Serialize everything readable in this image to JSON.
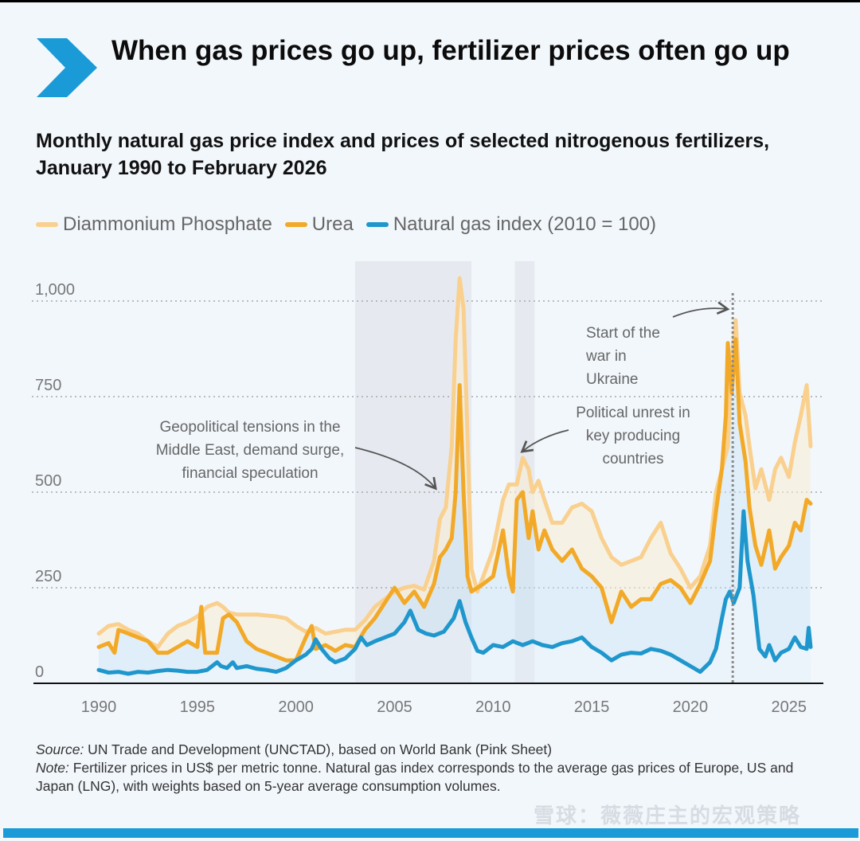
{
  "header": {
    "title": "When gas prices go up, fertilizer prices often go up",
    "subtitle": "Monthly natural gas price index and prices of selected nitrogenous fertilizers, January 1990 to February 2026"
  },
  "colors": {
    "accent": "#1a9bd7",
    "dap": "#f9d08e",
    "urea": "#f2a928",
    "gas": "#1f97cd",
    "shade": "#e6eaf0"
  },
  "legend": [
    {
      "label": "Diammonium Phosphate",
      "color": "#f9d08e"
    },
    {
      "label": "Urea",
      "color": "#f2a928"
    },
    {
      "label": "Natural gas index (2010 = 100)",
      "color": "#1f97cd"
    }
  ],
  "chart_data": {
    "type": "line",
    "title": "Monthly natural gas price index and prices of selected nitrogenous fertilizers, January 1990 to February 2026",
    "xlabel": "",
    "ylabel": "",
    "xlim": [
      1990,
      2026.1
    ],
    "ylim": [
      0,
      1000
    ],
    "grid": true,
    "legend_position": "top-left",
    "y_ticks": [
      {
        "value": 0,
        "label": "0"
      },
      {
        "value": 250,
        "label": "250"
      },
      {
        "value": 500,
        "label": "500"
      },
      {
        "value": 750,
        "label": "750"
      },
      {
        "value": 1000,
        "label": "1,000"
      }
    ],
    "x_ticks": [
      1990,
      1995,
      2000,
      2005,
      2010,
      2015,
      2020,
      2025
    ],
    "series": [
      {
        "name": "Diammonium Phosphate",
        "x": [
          1990,
          1990.5,
          1991,
          1991.5,
          1992,
          1992.5,
          1993,
          1993.5,
          1994,
          1994.5,
          1995,
          1995.5,
          1996,
          1996.3,
          1996.6,
          1997,
          1998,
          1999,
          1999.5,
          2000,
          2000.5,
          2001,
          2001.5,
          2002,
          2002.5,
          2003,
          2003.5,
          2004,
          2004.5,
          2005,
          2005.5,
          2006,
          2006.5,
          2007,
          2007.3,
          2007.6,
          2007.9,
          2008.1,
          2008.3,
          2008.5,
          2008.7,
          2008.9,
          2009.2,
          2009.5,
          2010,
          2010.5,
          2010.8,
          2011.2,
          2011.5,
          2011.8,
          2012,
          2012.3,
          2012.6,
          2013,
          2013.5,
          2014,
          2014.5,
          2015,
          2015.5,
          2016,
          2016.5,
          2017,
          2017.5,
          2018,
          2018.5,
          2019,
          2019.5,
          2020,
          2020.5,
          2021,
          2021.3,
          2021.6,
          2021.9,
          2022.1,
          2022.3,
          2022.5,
          2022.8,
          2023,
          2023.3,
          2023.6,
          2024,
          2024.3,
          2024.6,
          2025,
          2025.3,
          2025.6,
          2025.9,
          2026.1
        ],
        "values": [
          130,
          150,
          155,
          140,
          130,
          110,
          95,
          130,
          150,
          160,
          175,
          200,
          210,
          200,
          185,
          180,
          180,
          175,
          170,
          150,
          135,
          145,
          130,
          135,
          140,
          140,
          165,
          200,
          220,
          240,
          250,
          255,
          245,
          320,
          430,
          460,
          620,
          900,
          1060,
          980,
          650,
          300,
          240,
          280,
          350,
          480,
          520,
          520,
          590,
          560,
          500,
          530,
          480,
          420,
          420,
          460,
          470,
          450,
          380,
          330,
          310,
          320,
          330,
          380,
          420,
          340,
          300,
          250,
          280,
          360,
          500,
          560,
          620,
          850,
          950,
          760,
          700,
          620,
          510,
          560,
          480,
          560,
          590,
          540,
          630,
          700,
          780,
          620
        ]
      },
      {
        "name": "Urea",
        "x": [
          1990,
          1990.5,
          1990.8,
          1991,
          1991.5,
          1992,
          1992.5,
          1993,
          1993.5,
          1994,
          1994.5,
          1995,
          1995.2,
          1995.4,
          1995.6,
          1996,
          1996.3,
          1996.6,
          1997,
          1997.5,
          1998,
          1998.5,
          1999,
          1999.5,
          2000,
          2000.5,
          2000.8,
          2001,
          2001.5,
          2002,
          2002.5,
          2003,
          2003.5,
          2004,
          2004.5,
          2005,
          2005.5,
          2006,
          2006.5,
          2007,
          2007.3,
          2007.6,
          2007.9,
          2008.1,
          2008.3,
          2008.5,
          2008.7,
          2008.9,
          2009.2,
          2009.5,
          2010,
          2010.5,
          2010.8,
          2011,
          2011.2,
          2011.5,
          2011.8,
          2012,
          2012.3,
          2012.6,
          2013,
          2013.5,
          2014,
          2014.5,
          2015,
          2015.5,
          2016,
          2016.5,
          2017,
          2017.5,
          2018,
          2018.5,
          2019,
          2019.5,
          2020,
          2020.5,
          2021,
          2021.3,
          2021.6,
          2021.8,
          2021.9,
          2022.1,
          2022.3,
          2022.5,
          2022.8,
          2023,
          2023.3,
          2023.6,
          2024,
          2024.3,
          2024.6,
          2025,
          2025.3,
          2025.6,
          2025.9,
          2026.1
        ],
        "values": [
          95,
          105,
          80,
          140,
          130,
          120,
          110,
          80,
          80,
          95,
          110,
          95,
          200,
          80,
          80,
          80,
          170,
          180,
          160,
          110,
          90,
          80,
          70,
          60,
          60,
          120,
          150,
          90,
          100,
          85,
          100,
          95,
          140,
          170,
          210,
          250,
          210,
          240,
          200,
          260,
          330,
          350,
          380,
          500,
          780,
          500,
          280,
          240,
          250,
          260,
          280,
          400,
          280,
          240,
          480,
          500,
          380,
          450,
          350,
          400,
          350,
          320,
          350,
          300,
          280,
          250,
          160,
          240,
          200,
          220,
          220,
          260,
          270,
          250,
          210,
          260,
          320,
          450,
          560,
          700,
          890,
          760,
          900,
          680,
          580,
          460,
          360,
          310,
          400,
          300,
          330,
          360,
          420,
          400,
          480,
          470
        ]
      },
      {
        "name": "Natural gas index (2010 = 100)",
        "x": [
          1990,
          1990.5,
          1991,
          1991.5,
          1992,
          1992.5,
          1993,
          1993.5,
          1994,
          1994.5,
          1995,
          1995.5,
          1996,
          1996.2,
          1996.5,
          1996.8,
          1997,
          1997.5,
          1998,
          1998.5,
          1999,
          1999.5,
          2000,
          2000.5,
          2000.8,
          2001,
          2001.3,
          2001.7,
          2002,
          2002.5,
          2003,
          2003.3,
          2003.6,
          2004,
          2004.5,
          2005,
          2005.5,
          2005.8,
          2006.2,
          2006.6,
          2007,
          2007.5,
          2008,
          2008.3,
          2008.6,
          2008.9,
          2009.2,
          2009.5,
          2010,
          2010.5,
          2011,
          2011.5,
          2012,
          2012.5,
          2013,
          2013.5,
          2014,
          2014.5,
          2015,
          2015.5,
          2016,
          2016.5,
          2017,
          2017.5,
          2018,
          2018.5,
          2019,
          2019.5,
          2020,
          2020.5,
          2021,
          2021.3,
          2021.6,
          2021.8,
          2022,
          2022.2,
          2022.5,
          2022.7,
          2022.9,
          2023.2,
          2023.5,
          2023.8,
          2024,
          2024.3,
          2024.6,
          2025,
          2025.3,
          2025.6,
          2025.9,
          2026,
          2026.1
        ],
        "values": [
          35,
          28,
          30,
          25,
          30,
          28,
          32,
          35,
          33,
          30,
          30,
          35,
          55,
          45,
          40,
          55,
          40,
          45,
          38,
          35,
          30,
          40,
          60,
          75,
          90,
          115,
          90,
          65,
          55,
          65,
          90,
          120,
          100,
          110,
          120,
          130,
          160,
          190,
          140,
          130,
          125,
          135,
          170,
          215,
          160,
          120,
          85,
          80,
          100,
          95,
          110,
          100,
          110,
          100,
          95,
          105,
          110,
          120,
          95,
          80,
          60,
          75,
          80,
          78,
          90,
          85,
          75,
          60,
          45,
          30,
          55,
          90,
          170,
          220,
          240,
          210,
          250,
          450,
          320,
          230,
          90,
          70,
          100,
          60,
          80,
          90,
          120,
          95,
          90,
          145,
          95
        ]
      }
    ],
    "shaded_periods": [
      [
        2003,
        2008.9
      ],
      [
        2011.1,
        2012.1
      ]
    ],
    "vertical_marker": {
      "x": 2022.15,
      "style": "dotted"
    },
    "annotations": [
      {
        "text": [
          "Geopolitical tensions in the",
          "Middle East, demand surge,",
          "financial speculation"
        ],
        "arrow_to": {
          "x": 2007.2,
          "y": 500
        }
      },
      {
        "text": [
          "Political unrest in",
          "key producing",
          "countries"
        ],
        "arrow_to": {
          "x": 2011.6,
          "y": 570
        }
      },
      {
        "text": [
          "Start of the",
          "war in",
          "Ukraine"
        ],
        "arrow_to": {
          "x": 2022.0,
          "y": 940
        }
      }
    ]
  },
  "footer": {
    "source_label": "Source:",
    "source_text": " UN Trade and Development (UNCTAD), based on World Bank (Pink Sheet)",
    "note_label": "Note:",
    "note_text": " Fertilizer prices in US$ per metric tonne. Natural gas index corresponds to the average gas prices of Europe, US and Japan (LNG), with weights based on 5-year average consumption volumes."
  },
  "watermark": "雪球：薇薇庄主的宏观策略"
}
